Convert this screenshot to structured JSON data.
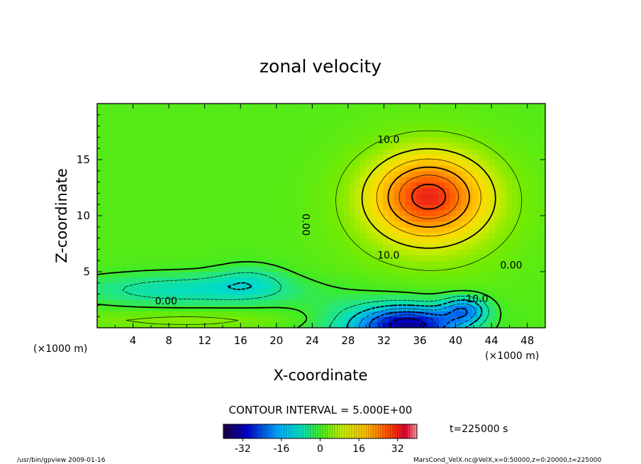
{
  "chart_data": {
    "type": "heatmap",
    "title": "zonal velocity",
    "xlabel": "X-coordinate",
    "ylabel": "Z-coordinate",
    "x_unit": "(×1000 m)",
    "y_unit": "(×1000 m)",
    "xlim": [
      0,
      50
    ],
    "ylim": [
      0,
      20
    ],
    "xticks": [
      4,
      8,
      12,
      16,
      20,
      24,
      28,
      32,
      36,
      40,
      44,
      48
    ],
    "yticks": [
      5,
      10,
      15
    ],
    "contour_interval_text": "CONTOUR INTERVAL = 5.000E+00",
    "contour_labels": [
      {
        "text": "10.0",
        "x": 32.5,
        "z": 16.8
      },
      {
        "text": "10.0",
        "x": 32.5,
        "z": 6.5
      },
      {
        "text": "0.00",
        "x": 23.3,
        "z": 9.2
      },
      {
        "text": "0.00",
        "x": 46.2,
        "z": 5.6
      },
      {
        "text": "0.00",
        "x": 7.7,
        "z": 2.4
      },
      {
        "text": "-10.0",
        "x": 42.2,
        "z": 2.6
      }
    ],
    "colorbar": {
      "ticks": [
        "-32",
        "-16",
        "0",
        "16",
        "32"
      ],
      "range": [
        -40,
        40
      ]
    },
    "time_label": "t=225000 s"
  },
  "footer": {
    "left": "/usr/bin/gpview   2009-01-16",
    "right": "MarsCond_VelX.nc@VelX,x=0:50000,z=0:20000,t=225000"
  }
}
